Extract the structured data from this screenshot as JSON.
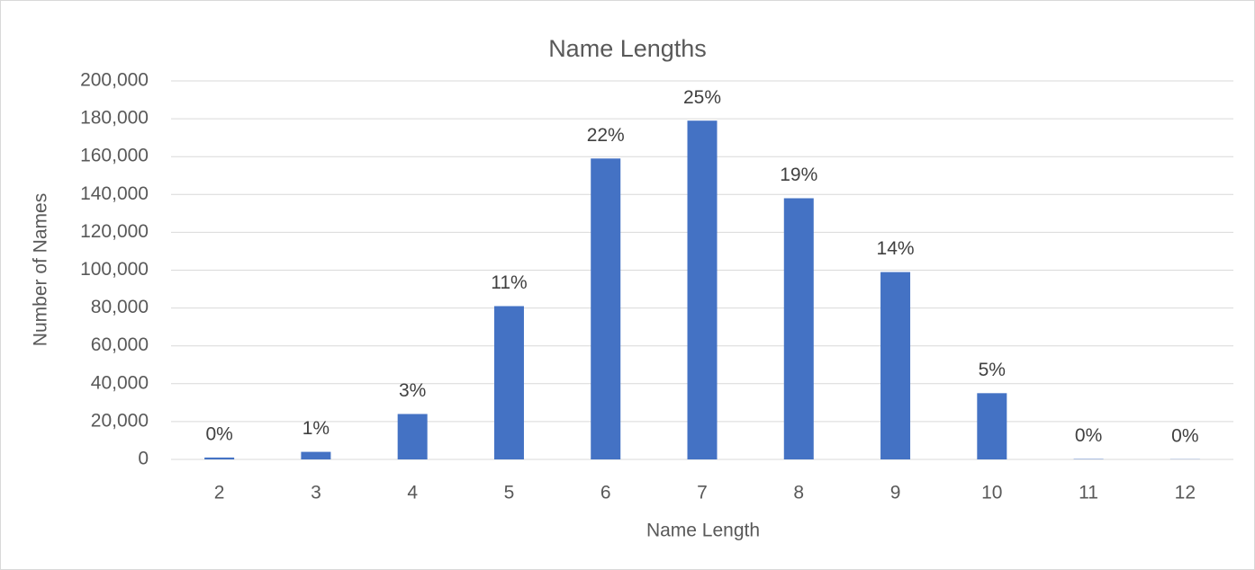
{
  "chart_data": {
    "type": "bar",
    "title": "Name Lengths",
    "x_label": "Name Length",
    "y_label": "Number of Names",
    "categories": [
      "2",
      "3",
      "4",
      "5",
      "6",
      "7",
      "8",
      "9",
      "10",
      "11",
      "12"
    ],
    "values": [
      1000,
      4000,
      24000,
      81000,
      159000,
      179000,
      138000,
      99000,
      35000,
      200,
      100
    ],
    "value_labels": [
      "0%",
      "1%",
      "3%",
      "11%",
      "22%",
      "25%",
      "19%",
      "14%",
      "5%",
      "0%",
      "0%"
    ],
    "color": "#4472c4",
    "ylim": [
      0,
      200000
    ],
    "yticks": [
      0,
      {
        "value": 20000,
        "label": "20,000"
      },
      {
        "value": 40000,
        "label": "40,000"
      },
      {
        "value": 60000,
        "label": "60,000"
      },
      {
        "value": 80000,
        "label": "80,000"
      },
      {
        "value": 100000,
        "label": "100,000"
      },
      {
        "value": 120000,
        "label": "120,000"
      },
      {
        "value": 140000,
        "label": "140,000"
      },
      {
        "value": 160000,
        "label": "160,000"
      },
      {
        "value": 180000,
        "label": "180,000"
      },
      {
        "value": 200000,
        "label": "200,000"
      }
    ],
    "grid": true
  }
}
